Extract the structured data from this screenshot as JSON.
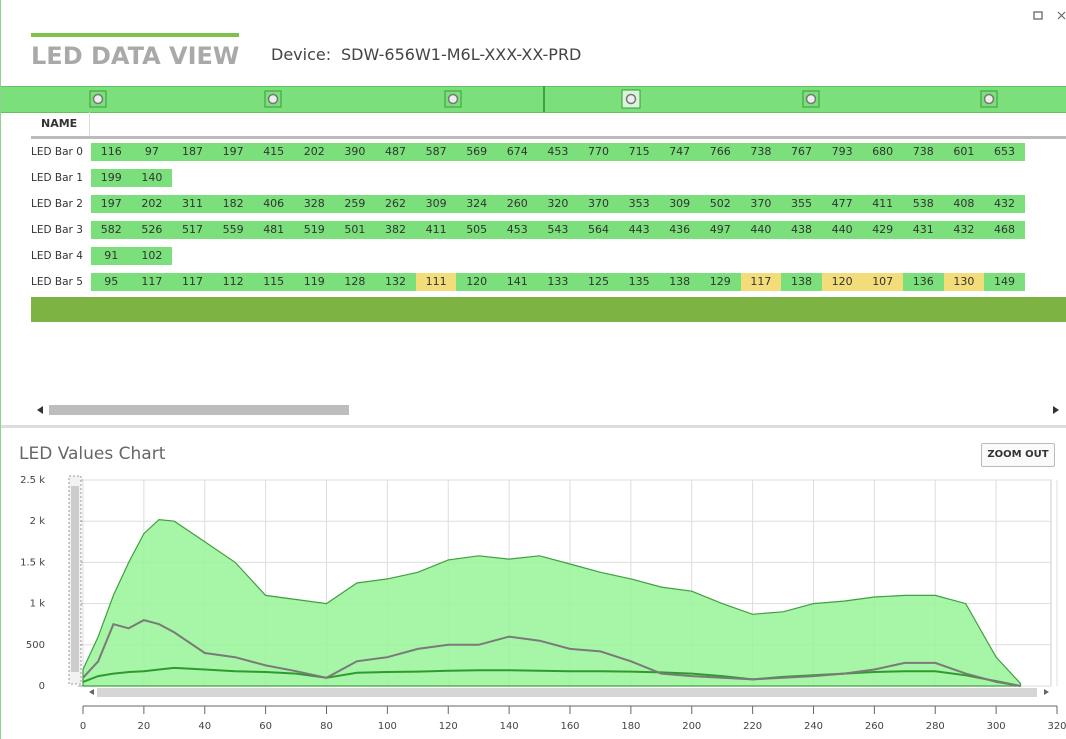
{
  "header": {
    "title": "LED DATA VIEW",
    "device_label": "Device:",
    "device": "SDW-656W1-M6L-XXX-XX-PRD"
  },
  "table": {
    "columns": [
      "NAME"
    ],
    "rows": [
      {
        "name": "LED Bar 0",
        "values": [
          116,
          97,
          187,
          197,
          415,
          202,
          390,
          487,
          587,
          569,
          674,
          453,
          770,
          715,
          747,
          766,
          738,
          767,
          793,
          680,
          738,
          601,
          653
        ]
      },
      {
        "name": "LED Bar 1",
        "values": [
          199,
          140
        ]
      },
      {
        "name": "LED Bar 2",
        "values": [
          197,
          202,
          311,
          182,
          406,
          328,
          259,
          262,
          309,
          324,
          260,
          320,
          370,
          353,
          309,
          502,
          370,
          355,
          477,
          411,
          538,
          408,
          432
        ]
      },
      {
        "name": "LED Bar 3",
        "values": [
          582,
          526,
          517,
          559,
          481,
          519,
          501,
          382,
          411,
          505,
          453,
          543,
          564,
          443,
          436,
          497,
          440,
          438,
          440,
          429,
          431,
          432,
          468
        ]
      },
      {
        "name": "LED Bar 4",
        "values": [
          91,
          102
        ]
      },
      {
        "name": "LED Bar 5",
        "values": [
          95,
          117,
          117,
          112,
          115,
          119,
          128,
          132,
          111,
          120,
          141,
          133,
          125,
          135,
          138,
          129,
          117,
          138,
          120,
          107,
          136,
          130,
          149
        ],
        "highlighted": [
          8,
          16,
          18,
          19,
          21
        ]
      }
    ],
    "cell_color": "#7be07b",
    "highlight_color": "#f3dd7a"
  },
  "zoom_button": "ZOOM OUT",
  "chart_data": {
    "type": "area",
    "title": "LED Values Chart",
    "x": [
      0,
      5,
      10,
      15,
      20,
      25,
      30,
      40,
      50,
      60,
      70,
      80,
      90,
      100,
      110,
      120,
      130,
      140,
      150,
      160,
      170,
      180,
      190,
      200,
      210,
      220,
      230,
      240,
      250,
      260,
      270,
      280,
      290,
      300,
      308
    ],
    "series": [
      {
        "color": "#3f9f3f",
        "fill": "#98f598",
        "values": [
          200,
          600,
          1100,
          1500,
          1850,
          2020,
          2000,
          1750,
          1500,
          1100,
          1050,
          1000,
          1250,
          1300,
          1380,
          1530,
          1580,
          1540,
          1580,
          1480,
          1380,
          1300,
          1200,
          1150,
          1000,
          870,
          900,
          1000,
          1030,
          1080,
          1100,
          1100,
          1000,
          350,
          30
        ]
      },
      {
        "color": "#2f9a2f",
        "values": [
          50,
          120,
          150,
          170,
          180,
          200,
          220,
          200,
          180,
          170,
          150,
          100,
          160,
          170,
          175,
          185,
          190,
          190,
          185,
          180,
          180,
          175,
          165,
          150,
          120,
          80,
          110,
          130,
          150,
          170,
          180,
          180,
          130,
          60,
          0
        ]
      },
      {
        "color": "#7a7a7a",
        "values": [
          100,
          300,
          750,
          700,
          800,
          750,
          650,
          400,
          350,
          250,
          180,
          100,
          300,
          350,
          450,
          500,
          500,
          600,
          550,
          450,
          420,
          300,
          150,
          120,
          100,
          80,
          100,
          120,
          150,
          200,
          280,
          280,
          150,
          50,
          0
        ]
      }
    ],
    "xlim": [
      0,
      320
    ],
    "xticks": [
      0,
      20,
      40,
      60,
      80,
      100,
      120,
      140,
      160,
      180,
      200,
      220,
      240,
      260,
      280,
      300,
      320
    ],
    "ylim": [
      0,
      2500
    ],
    "yticks": [
      0,
      500,
      {
        "value": 1000,
        "label": "1 k"
      },
      {
        "value": 1500,
        "label": "1.5 k"
      },
      {
        "value": 2000,
        "label": "2 k"
      },
      {
        "value": 2500,
        "label": "2.5 k"
      }
    ],
    "grid": true
  }
}
